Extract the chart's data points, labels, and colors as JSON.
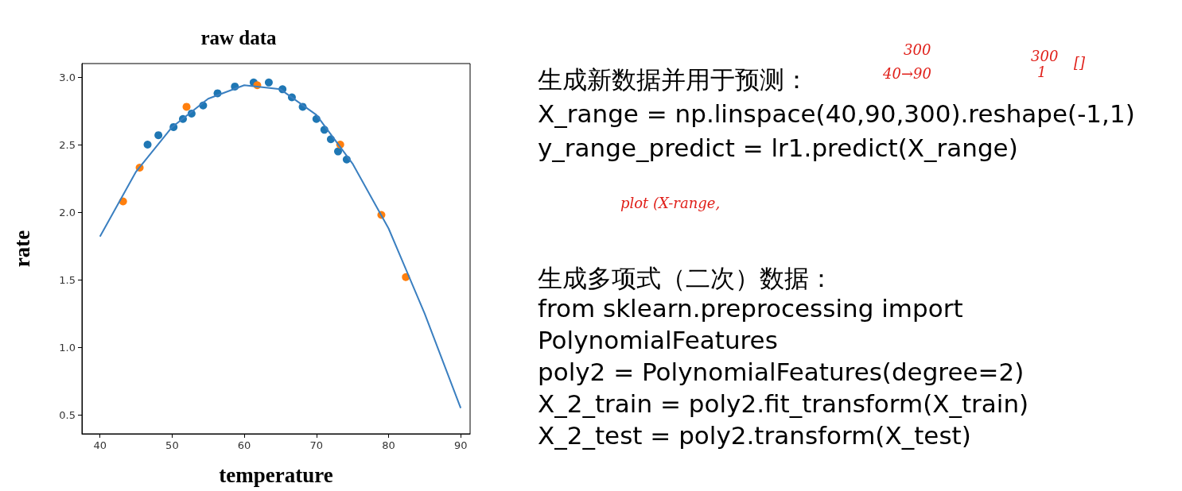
{
  "chart_data": [
    {
      "type": "scatter",
      "title": "raw data",
      "xlabel": "temperature",
      "ylabel": "rate",
      "xlim": [
        37.5,
        91.3
      ],
      "ylim": [
        0.36,
        3.1
      ],
      "xticks": [
        40,
        50,
        60,
        70,
        80,
        90
      ],
      "yticks": [
        0.5,
        {
          "value": 1,
          "label": "1.0"
        },
        1.5,
        {
          "value": 2,
          "label": "2.0"
        },
        2.5,
        {
          "value": 3,
          "label": "3.0"
        }
      ],
      "grid": false,
      "marker": "circle",
      "series": [
        {
          "type": "scatter",
          "color": "#1f77b4",
          "x": [
            46.6,
            48.1,
            50.2,
            51.5,
            52.7,
            54.3,
            56.3,
            58.7,
            61.3,
            63.4,
            65.3,
            66.6,
            68.1,
            70.0,
            71.1,
            72.0,
            73.0,
            74.2
          ],
          "values": [
            2.5,
            2.57,
            2.63,
            2.69,
            2.73,
            2.79,
            2.88,
            2.93,
            2.96,
            2.96,
            2.91,
            2.85,
            2.78,
            2.69,
            2.61,
            2.54,
            2.45,
            2.39
          ]
        },
        {
          "type": "scatter",
          "color": "#ff7f0e",
          "x": [
            43.2,
            45.5,
            52.0,
            61.8,
            73.3,
            79.0,
            82.4
          ],
          "values": [
            2.08,
            2.33,
            2.78,
            2.94,
            2.5,
            1.98,
            1.52
          ]
        },
        {
          "type": "line",
          "color": "#3a7fc0",
          "marker": "none",
          "x": [
            40,
            45,
            50,
            55,
            60,
            65,
            70,
            75,
            80,
            85,
            90
          ],
          "values": [
            1.82,
            2.3,
            2.63,
            2.84,
            2.94,
            2.91,
            2.72,
            2.36,
            1.88,
            1.25,
            0.55
          ]
        }
      ]
    },
    {
      "type": "other",
      "annotations": [
        "生成新数据并用于预测：",
        "X_range = np.linspace(40,90,300).reshape(-1,1)",
        "y_range_predict = lr1.predict(X_range)",
        "生成多项式（二次）数据：",
        "from sklearn.preprocessing import",
        "PolynomialFeatures",
        "poly2 = PolynomialFeatures(degree=2)",
        "X_2_train = poly2.fit_transform(X_train)",
        "X_2_test = poly2.transform(X_test)",
        "300",
        "40→90",
        "300",
        "1",
        "[]",
        "plot (X-range,"
      ]
    }
  ]
}
